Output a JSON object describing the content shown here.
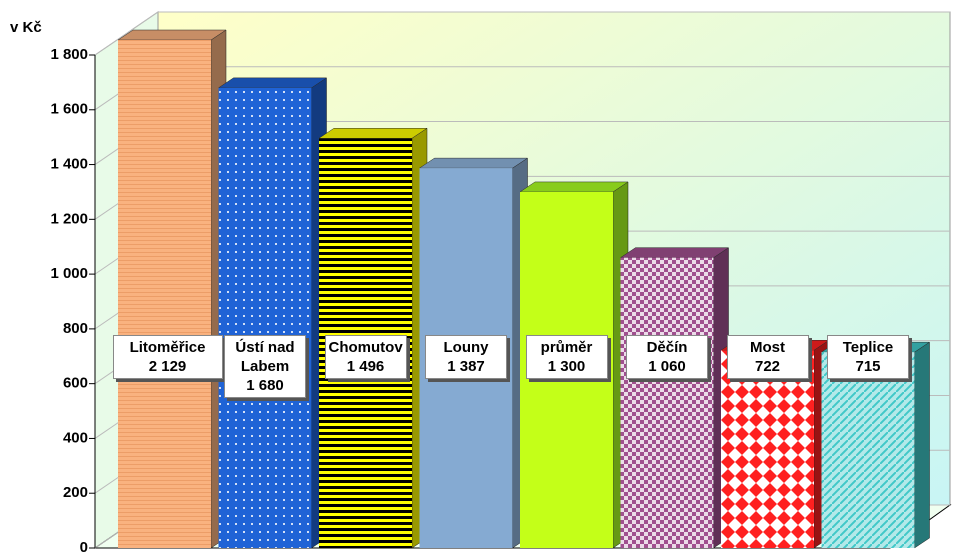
{
  "chart_data": {
    "type": "bar",
    "y_label": "v Kč",
    "categories": [
      "Litoměřice",
      "Ústí nad Labem",
      "Chomutov",
      "Louny",
      "průměr",
      "Děčín",
      "Most",
      "Teplice"
    ],
    "values": [
      2129,
      1680,
      1496,
      1387,
      1300,
      1060,
      722,
      715
    ],
    "value_labels": [
      "2 129",
      "1 680",
      "1 496",
      "1 387",
      "1 300",
      "1 060",
      "722",
      "715"
    ],
    "colors": [
      "#f9b27f",
      "#1f63d6",
      "#ffff00",
      "#8fb4dc",
      "#aaff22",
      "#a0508f",
      "#ff2020",
      "#40c8c8"
    ],
    "ylim": [
      0,
      1800
    ],
    "yticks": [
      0,
      200,
      400,
      600,
      800,
      {
        "value": 1000,
        "label": "1 000"
      },
      {
        "value": 1200,
        "label": "1 200"
      },
      {
        "value": 1400,
        "label": "1 400"
      },
      {
        "value": 1600,
        "label": "1 600"
      },
      {
        "value": 1800,
        "label": "1 800"
      }
    ],
    "grid": true
  }
}
